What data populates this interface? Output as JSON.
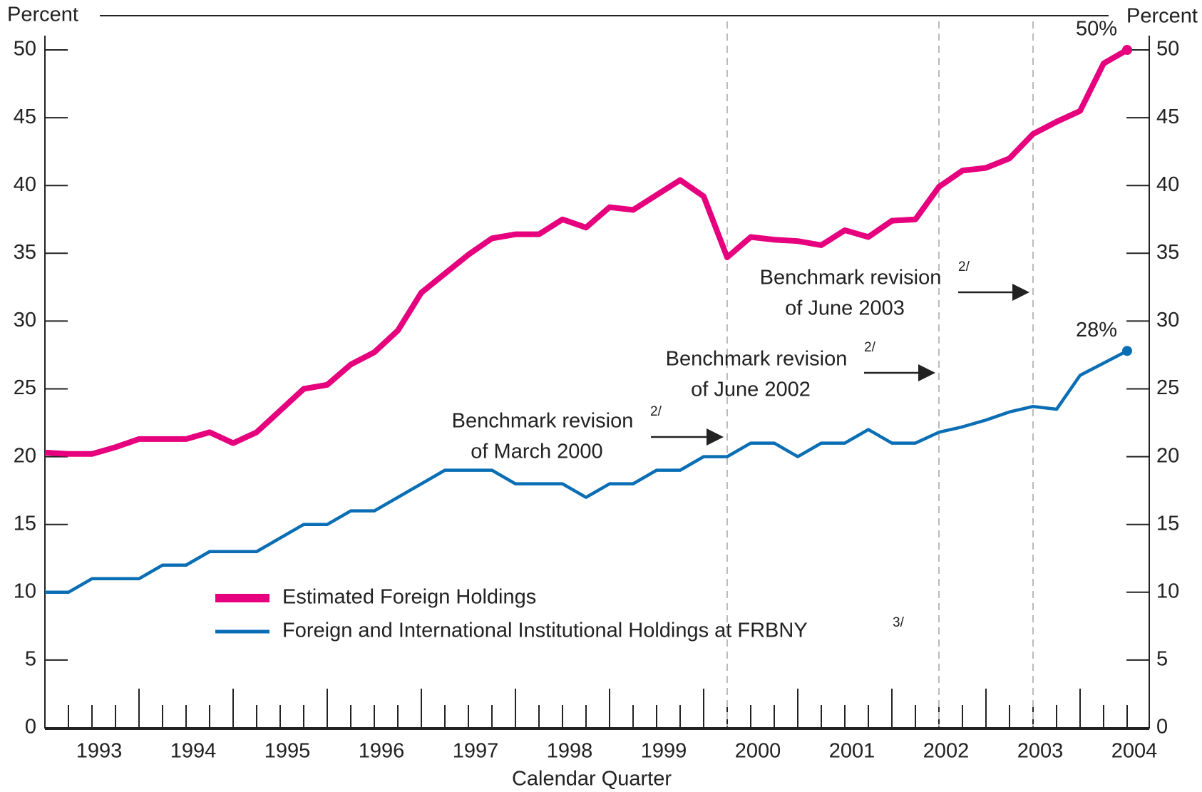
{
  "chart_data": {
    "type": "line",
    "axis_title_left": "Percent",
    "axis_title_right": "Percent",
    "x_axis_title": "Calendar Quarter",
    "categories": [
      null,
      null,
      null,
      null,
      null,
      null,
      null,
      null,
      null,
      null,
      null,
      null,
      null,
      null,
      null,
      null,
      null,
      null,
      null,
      null,
      null,
      null,
      null,
      null,
      null,
      null,
      null,
      null,
      null,
      null,
      null,
      null,
      null,
      null,
      null,
      null,
      null,
      null,
      null,
      null,
      null,
      null,
      null,
      null,
      null,
      null,
      null
    ],
    "year_labels": [
      "1993",
      "1994",
      "1995",
      "1996",
      "1997",
      "1998",
      "1999",
      "2000",
      "2001",
      "2002",
      "2003",
      "2004"
    ],
    "series": [
      {
        "name": "Estimated Foreign Holdings",
        "color": "#e6007e",
        "values": [
          20.3,
          20.2,
          20.2,
          20.7,
          21.3,
          21.3,
          21.3,
          21.8,
          21.0,
          21.8,
          23.4,
          25.0,
          25.3,
          26.8,
          27.7,
          29.3,
          32.1,
          33.5,
          34.9,
          36.1,
          36.4,
          36.4,
          37.5,
          36.9,
          38.4,
          38.2,
          39.3,
          40.4,
          39.2,
          34.7,
          36.2,
          36.0,
          35.9,
          35.6,
          36.7,
          36.2,
          37.4,
          37.5,
          39.9,
          41.1,
          41.3,
          42.0,
          43.8,
          44.7,
          45.5,
          49.0,
          50.0
        ],
        "end_label": "50%"
      },
      {
        "name": "Foreign and International Institutional Holdings at FRBNY",
        "color": "#0a6eb4",
        "note": "3/",
        "values": [
          10,
          10,
          11,
          11,
          11,
          12,
          12,
          13,
          13,
          13,
          14,
          15,
          15,
          16,
          16,
          17,
          18,
          19,
          19,
          19,
          18,
          18,
          18,
          17,
          18,
          18,
          19,
          19,
          20,
          20,
          21,
          21,
          20,
          21,
          21,
          22,
          21,
          21,
          21.8,
          22.2,
          22.7,
          23.3,
          23.7,
          23.5,
          26.0,
          26.9,
          27.8
        ],
        "end_label": "28%"
      }
    ],
    "annotations": [
      {
        "lines": [
          "Benchmark revision",
          "of March 2000"
        ],
        "note": "2/"
      },
      {
        "lines": [
          "Benchmark revision",
          "of June 2002"
        ],
        "note": "2/"
      },
      {
        "lines": [
          "Benchmark revision",
          "of June 2003"
        ],
        "note": "2/"
      }
    ],
    "ylim": [
      0,
      50
    ],
    "yticks": [
      0,
      5,
      10,
      15,
      20,
      25,
      30,
      35,
      40,
      45,
      50
    ],
    "y2lim": [
      0,
      50
    ],
    "y2ticks": [
      0,
      5,
      10,
      15,
      20,
      25,
      30,
      35,
      40,
      45,
      50
    ],
    "grid": false
  }
}
